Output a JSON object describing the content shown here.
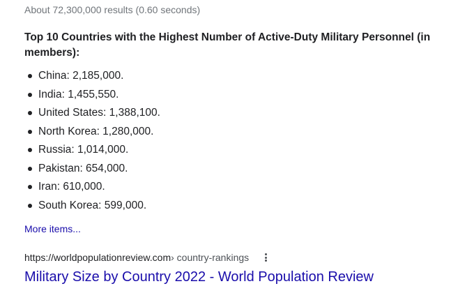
{
  "result_stats": "About 72,300,000 results (0.60 seconds)",
  "snippet": {
    "title": "Top 10 Countries with the Highest Number of Active-Duty Military Personnel (in members):",
    "items": [
      "China: 2,185,000.",
      "India: 1,455,550.",
      "United States: 1,388,100.",
      "North Korea: 1,280,000.",
      "Russia: 1,014,000.",
      "Pakistan: 654,000.",
      "Iran: 610,000.",
      "South Korea: 599,000."
    ],
    "more_items": "More items..."
  },
  "result": {
    "cite_domain": "https://worldpopulationreview.com",
    "cite_path": " › country-rankings",
    "title": "Military Size by Country 2022 - World Population Review",
    "menu_icon": "more-vert-icon"
  },
  "colors": {
    "link": "#1a0dab",
    "text": "#202124",
    "muted": "#70757a"
  }
}
